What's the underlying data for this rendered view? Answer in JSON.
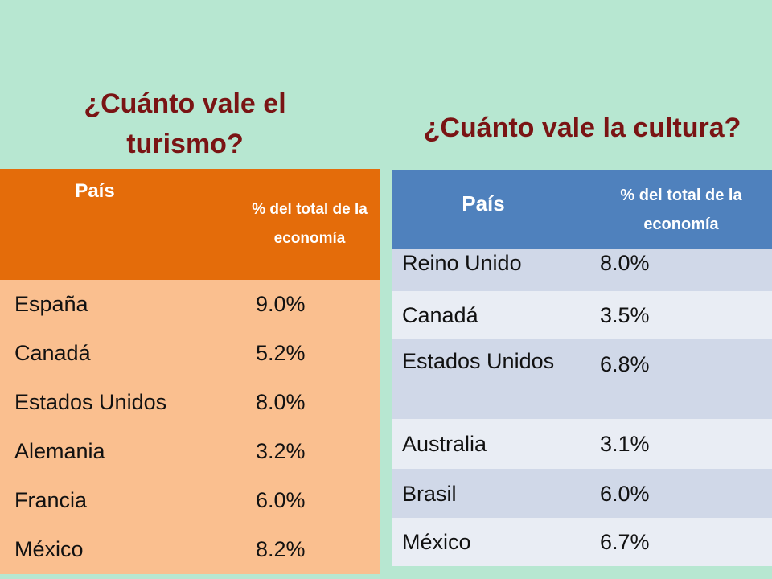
{
  "tourism": {
    "title": "¿Cuánto vale el turismo?",
    "header": {
      "country": "País",
      "percent": "% del total de la economía"
    },
    "rows": [
      {
        "country": "España",
        "value": "9.0%"
      },
      {
        "country": "Canadá",
        "value": "5.2%"
      },
      {
        "country": "Estados Unidos",
        "value": "8.0%"
      },
      {
        "country": "Alemania",
        "value": "3.2%"
      },
      {
        "country": "Francia",
        "value": "6.0%"
      },
      {
        "country": "México",
        "value": "8.2%"
      }
    ]
  },
  "culture": {
    "title": "¿Cuánto vale la cultura?",
    "header": {
      "country": "País",
      "percent": "% del total de la economía"
    },
    "rows": [
      {
        "country": "Reino Unido",
        "value": "8.0%"
      },
      {
        "country": "Canadá",
        "value": "3.5%"
      },
      {
        "country": "Estados Unidos",
        "value": "6.8%"
      },
      {
        "country": "Australia",
        "value": "3.1%"
      },
      {
        "country": "Brasil",
        "value": "6.0%"
      },
      {
        "country": "México",
        "value": "6.7%"
      }
    ]
  },
  "colors": {
    "background": "#b7e7d1",
    "title": "#7a1414",
    "tourism_header": "#e46c0a",
    "tourism_rows": "#fabf8f",
    "culture_header": "#4f81bd",
    "culture_row_dark": "#d0d8e8",
    "culture_row_light": "#e9edf4"
  }
}
